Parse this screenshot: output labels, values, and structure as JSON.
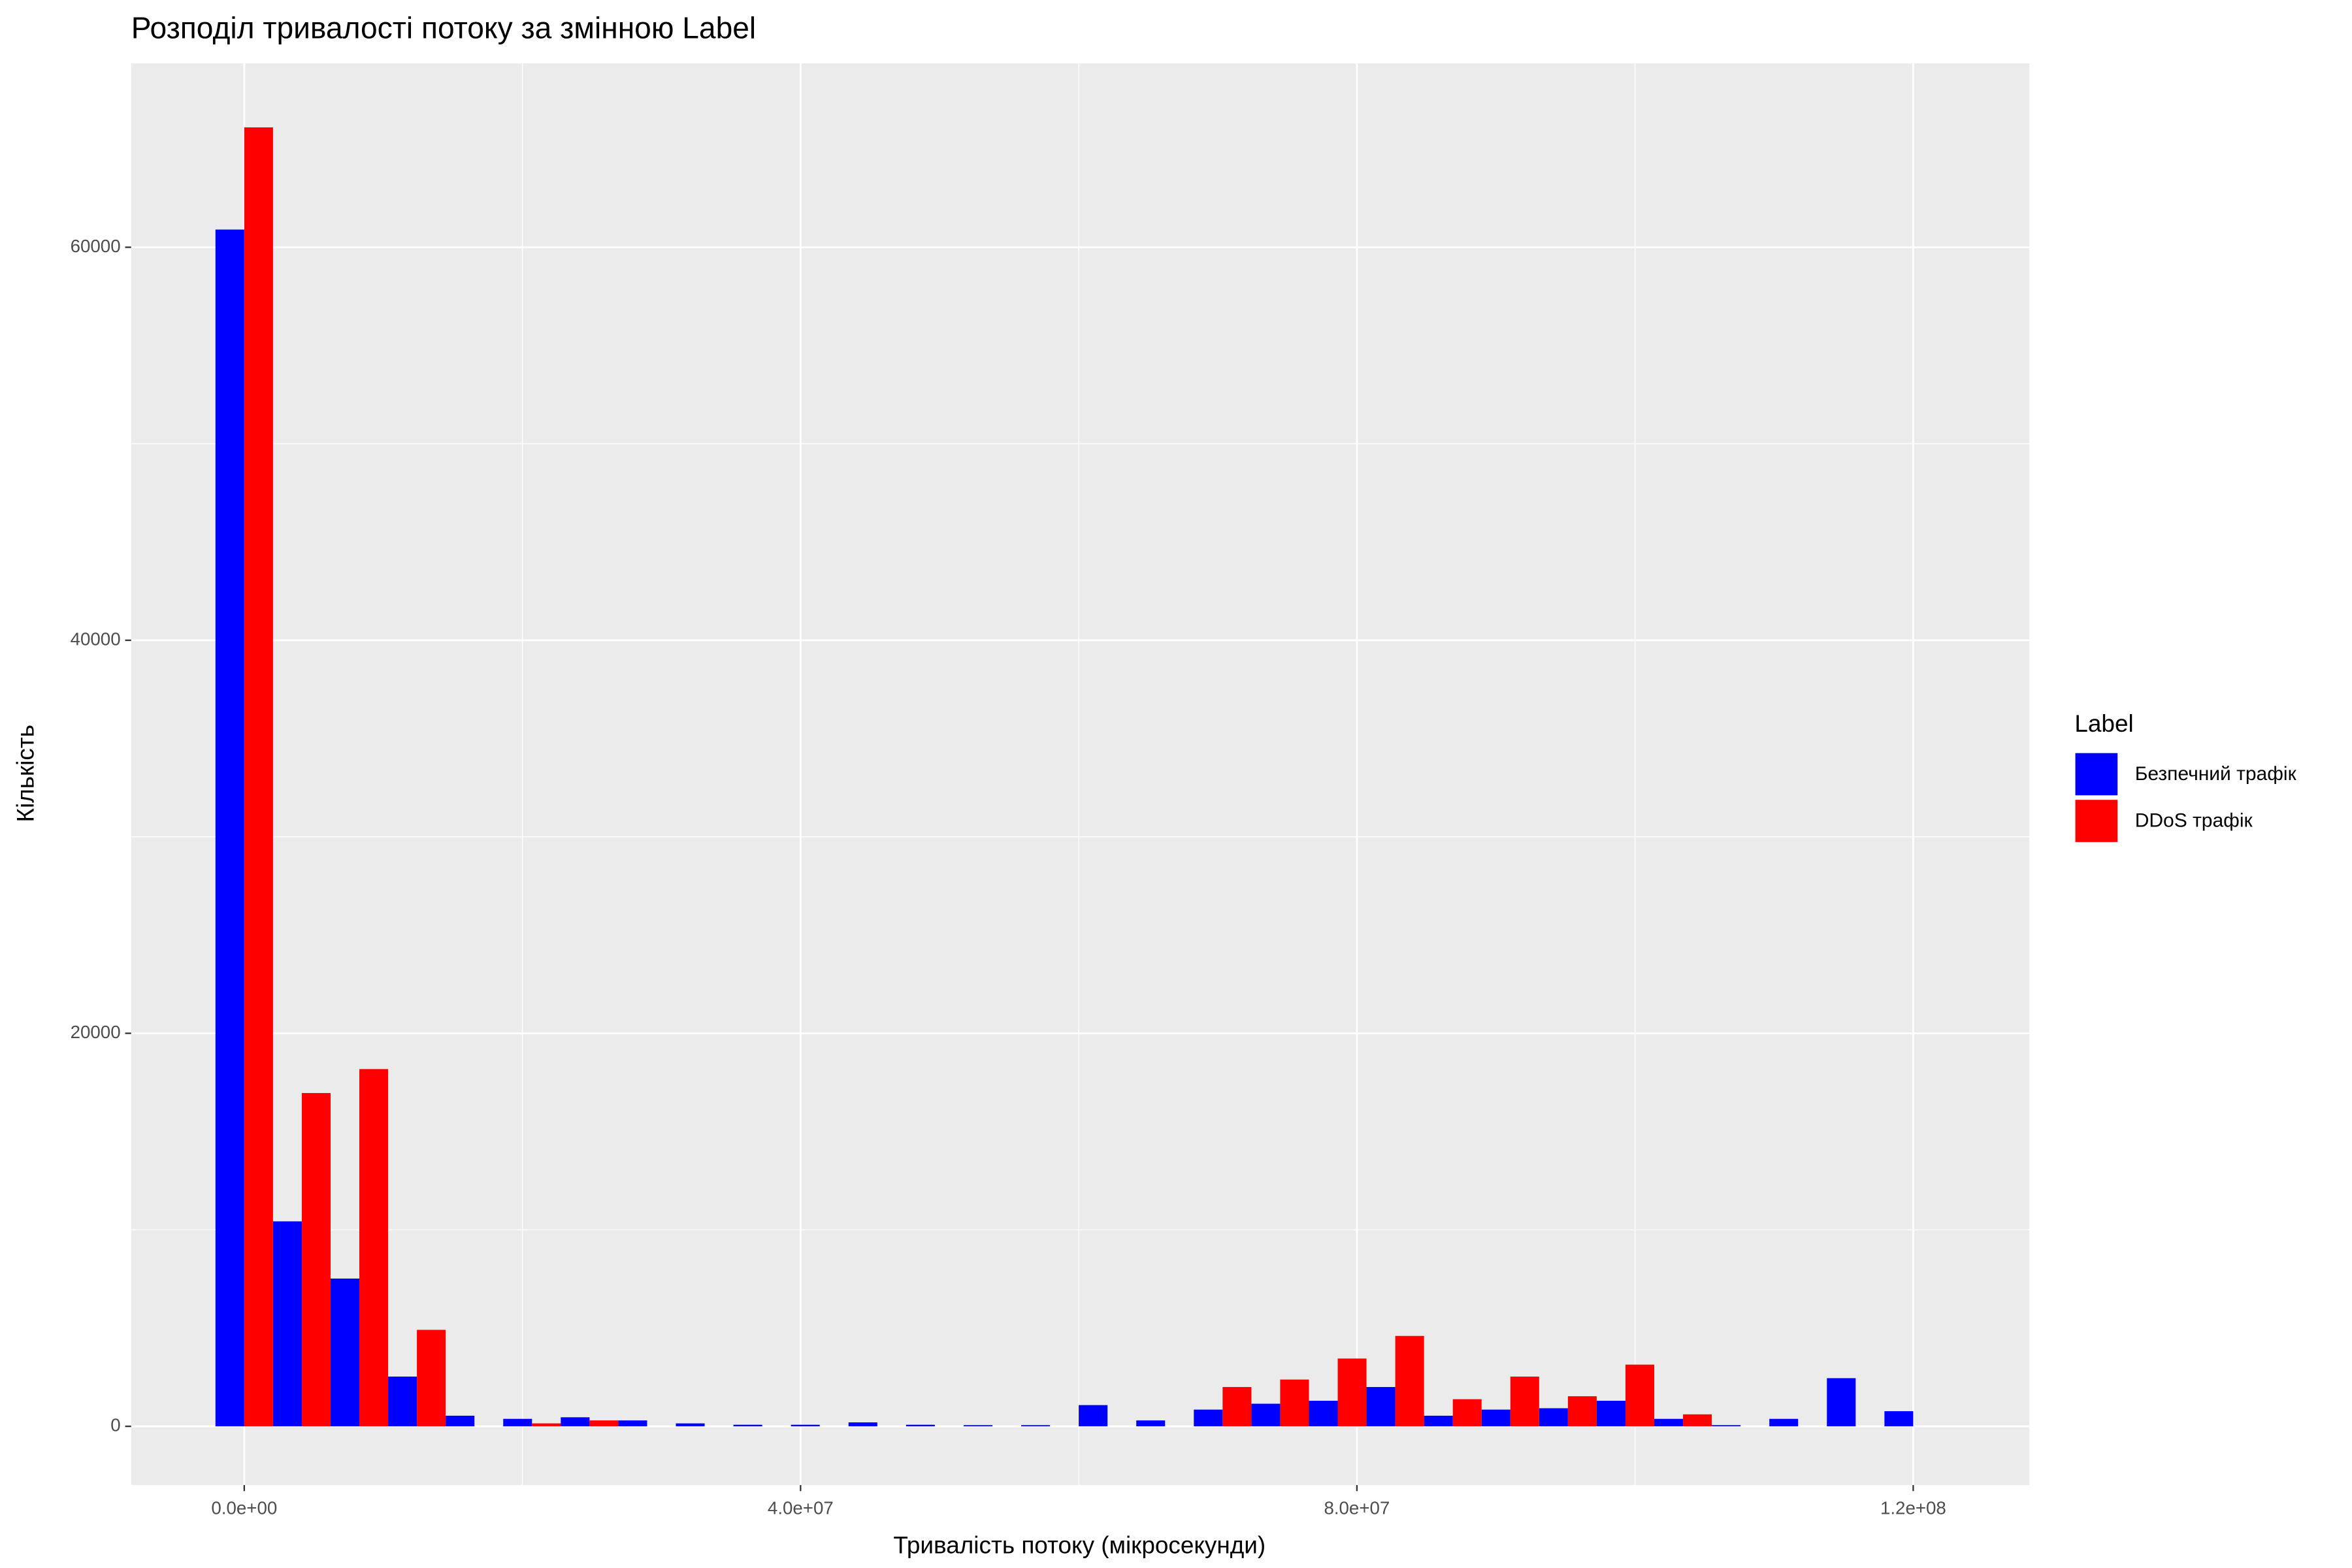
{
  "chart_data": {
    "type": "histogram",
    "title": "Розподіл тривалості потоку за змінною Label",
    "x_label": "Тривалість потоку (мікросекунди)",
    "y_label": "Кількість",
    "legend_title": "Label",
    "legend": "right",
    "grid": true,
    "bins": [
      -2068966,
      2068966,
      6206897,
      10344828,
      14482759,
      18620690,
      22758621,
      26896552,
      31034483,
      35172414,
      39310345,
      43448276,
      47586207,
      51724138,
      55862069,
      60000000,
      64137931,
      68275862,
      72413793,
      76551724,
      80689655,
      84827586,
      88965517,
      93103448,
      97241379,
      101379310,
      105517241,
      109655172,
      113793103,
      117931034,
      122068966
    ],
    "series": [
      {
        "name": "Безпечний трафік",
        "color": "#0000ff",
        "values": [
          60900,
          10430,
          7520,
          2530,
          540,
          380,
          460,
          300,
          150,
          80,
          80,
          200,
          80,
          60,
          60,
          1080,
          300,
          850,
          1150,
          1300,
          2000,
          540,
          850,
          920,
          1300,
          380,
          60,
          380,
          2450,
          770
        ]
      },
      {
        "name": "DDoS трафік",
        "color": "#ff0000",
        "values": [
          66100,
          16960,
          18180,
          4910,
          0,
          150,
          300,
          0,
          0,
          0,
          0,
          0,
          0,
          0,
          0,
          0,
          0,
          2000,
          2380,
          3450,
          4600,
          1380,
          2530,
          1530,
          3140,
          610,
          0,
          0,
          0,
          0
        ]
      }
    ],
    "xlim": [
      -8130000,
      128350000
    ],
    "xticks": [
      {
        "value": 0,
        "label": "0.0e+00"
      },
      {
        "value": 40000000,
        "label": "4.0e+07"
      },
      {
        "value": 80000000,
        "label": "8.0e+07"
      },
      {
        "value": 120000000,
        "label": "1.2e+08"
      }
    ],
    "ylim": [
      -2990,
      69360
    ],
    "yticks": [
      0,
      20000,
      40000,
      60000
    ]
  }
}
